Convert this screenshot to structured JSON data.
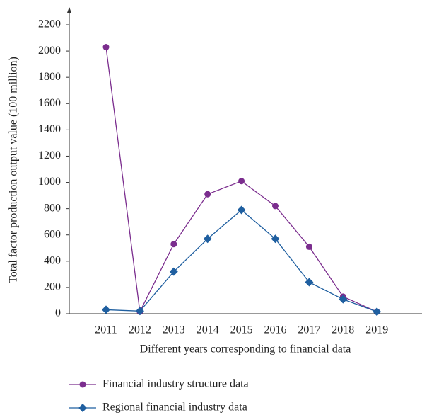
{
  "chart_data": {
    "type": "line",
    "xlabel": "Different years corresponding to financial data",
    "ylabel": "Total factor production output value (100 million)",
    "categories": [
      "2011",
      "2012",
      "2013",
      "2014",
      "2015",
      "2016",
      "2017",
      "2018",
      "2019"
    ],
    "series": [
      {
        "name": "Financial industry structure data",
        "color": "#7b2d8e",
        "marker": "circle",
        "values": [
          2030,
          15,
          530,
          910,
          1010,
          820,
          510,
          130,
          15
        ]
      },
      {
        "name": "Regional financial industry data",
        "color": "#1f5fa0",
        "marker": "diamond",
        "values": [
          30,
          20,
          320,
          570,
          790,
          570,
          240,
          110,
          15
        ]
      }
    ],
    "ylim": [
      0,
      2200
    ],
    "yticks": [
      0,
      200,
      400,
      600,
      800,
      1000,
      1200,
      1400,
      1600,
      1800,
      2000,
      2200
    ],
    "legend": "bottom"
  }
}
